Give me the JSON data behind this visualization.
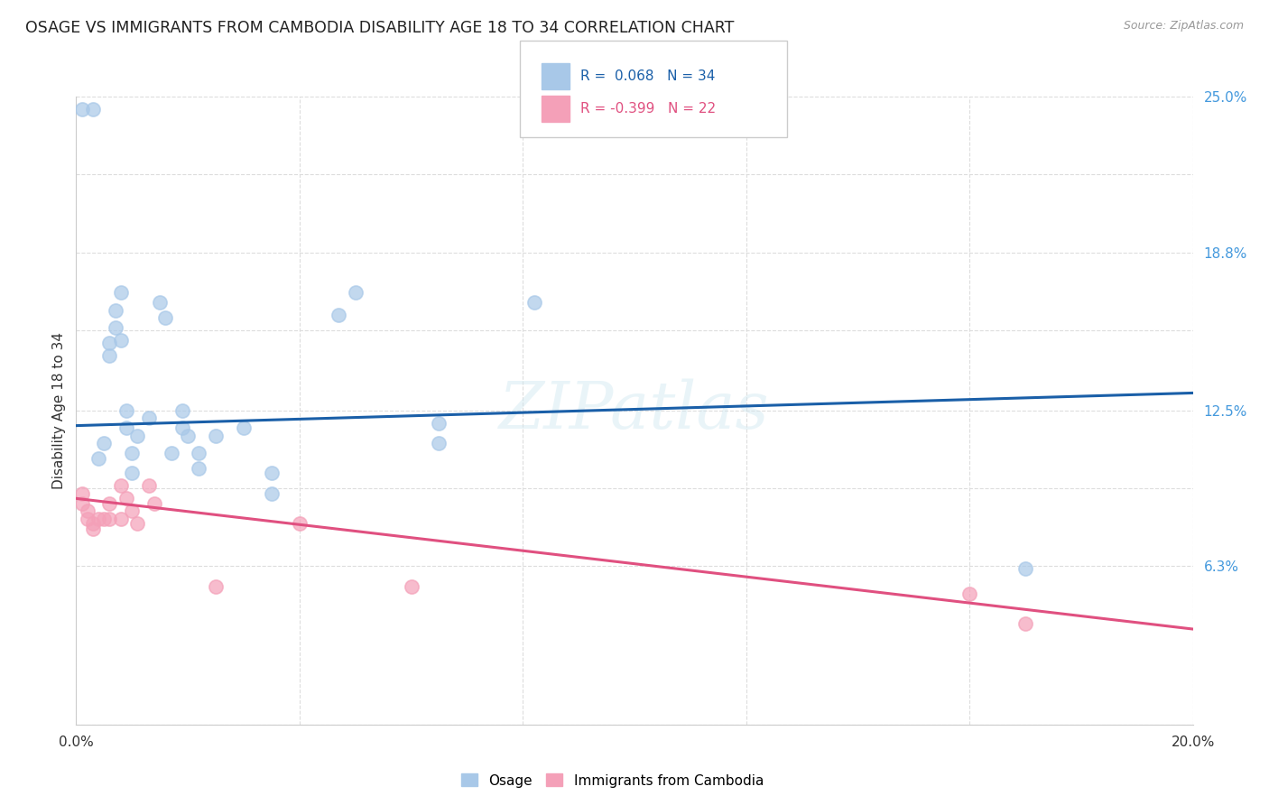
{
  "title": "OSAGE VS IMMIGRANTS FROM CAMBODIA DISABILITY AGE 18 TO 34 CORRELATION CHART",
  "source": "Source: ZipAtlas.com",
  "ylabel": "Disability Age 18 to 34",
  "xlim": [
    0.0,
    0.2
  ],
  "ylim": [
    0.0,
    0.25
  ],
  "ytick_labels": [
    "",
    "6.3%",
    "",
    "12.5%",
    "",
    "18.8%",
    "",
    "25.0%"
  ],
  "ytick_values": [
    0.0,
    0.063,
    0.094,
    0.125,
    0.157,
    0.188,
    0.219,
    0.25
  ],
  "xtick_labels": [
    "0.0%",
    "",
    "",
    "",
    "",
    "20.0%"
  ],
  "xtick_values": [
    0.0,
    0.04,
    0.08,
    0.12,
    0.16,
    0.2
  ],
  "watermark": "ZIPatlas",
  "legend_blue_r": "0.068",
  "legend_blue_n": "34",
  "legend_pink_r": "-0.399",
  "legend_pink_n": "22",
  "blue_scatter": [
    [
      0.001,
      0.245
    ],
    [
      0.003,
      0.245
    ],
    [
      0.004,
      0.106
    ],
    [
      0.005,
      0.112
    ],
    [
      0.006,
      0.152
    ],
    [
      0.006,
      0.147
    ],
    [
      0.007,
      0.165
    ],
    [
      0.007,
      0.158
    ],
    [
      0.008,
      0.172
    ],
    [
      0.008,
      0.153
    ],
    [
      0.009,
      0.125
    ],
    [
      0.009,
      0.118
    ],
    [
      0.01,
      0.108
    ],
    [
      0.01,
      0.1
    ],
    [
      0.011,
      0.115
    ],
    [
      0.013,
      0.122
    ],
    [
      0.015,
      0.168
    ],
    [
      0.016,
      0.162
    ],
    [
      0.017,
      0.108
    ],
    [
      0.019,
      0.125
    ],
    [
      0.019,
      0.118
    ],
    [
      0.02,
      0.115
    ],
    [
      0.022,
      0.108
    ],
    [
      0.022,
      0.102
    ],
    [
      0.025,
      0.115
    ],
    [
      0.03,
      0.118
    ],
    [
      0.035,
      0.1
    ],
    [
      0.035,
      0.092
    ],
    [
      0.047,
      0.163
    ],
    [
      0.05,
      0.172
    ],
    [
      0.065,
      0.12
    ],
    [
      0.065,
      0.112
    ],
    [
      0.082,
      0.168
    ],
    [
      0.17,
      0.062
    ]
  ],
  "pink_scatter": [
    [
      0.001,
      0.092
    ],
    [
      0.001,
      0.088
    ],
    [
      0.002,
      0.085
    ],
    [
      0.002,
      0.082
    ],
    [
      0.003,
      0.08
    ],
    [
      0.003,
      0.078
    ],
    [
      0.004,
      0.082
    ],
    [
      0.005,
      0.082
    ],
    [
      0.006,
      0.088
    ],
    [
      0.006,
      0.082
    ],
    [
      0.008,
      0.095
    ],
    [
      0.008,
      0.082
    ],
    [
      0.009,
      0.09
    ],
    [
      0.01,
      0.085
    ],
    [
      0.011,
      0.08
    ],
    [
      0.013,
      0.095
    ],
    [
      0.014,
      0.088
    ],
    [
      0.025,
      0.055
    ],
    [
      0.04,
      0.08
    ],
    [
      0.06,
      0.055
    ],
    [
      0.16,
      0.052
    ],
    [
      0.17,
      0.04
    ]
  ],
  "blue_line_x": [
    0.0,
    0.2
  ],
  "blue_line_y": [
    0.119,
    0.132
  ],
  "pink_line_x": [
    0.0,
    0.2
  ],
  "pink_line_y": [
    0.09,
    0.038
  ],
  "blue_color": "#a8c8e8",
  "pink_color": "#f4a0b8",
  "blue_line_color": "#1a5fa8",
  "pink_line_color": "#e05080",
  "background_color": "#ffffff",
  "grid_color": "#dddddd"
}
